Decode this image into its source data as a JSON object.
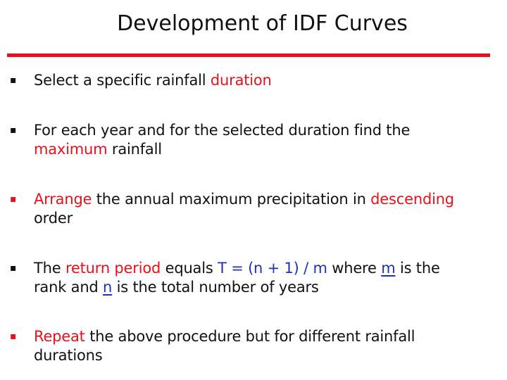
{
  "title": "Development of IDF Curves",
  "bullet_marker": "▪",
  "bullets": {
    "b1": {
      "t1": "Select a specific rainfall ",
      "t2": "duration"
    },
    "b2": {
      "t1": "For each year and for the selected duration find the",
      "t2": "maximum",
      "t3": " rainfall"
    },
    "b3": {
      "t1": "Arrange",
      "t2": " the annual maximum precipitation in ",
      "t3": "descending",
      "t4": "order"
    },
    "b4": {
      "t1": "The ",
      "t2": "return period",
      "t3": " equals ",
      "t4": "T = (n + 1) / m",
      "t5": " where ",
      "t6": "m",
      "t7": " is the",
      "t8": "rank and ",
      "t9": "n",
      "t10": " is the total number of years"
    },
    "b5": {
      "t1": "Repeat",
      "t2": " the above procedure but for different rainfall",
      "t3": "durations"
    }
  },
  "colors": {
    "accent_red": "#e8101a",
    "link_blue": "#1d33b8",
    "text": "#111111"
  }
}
